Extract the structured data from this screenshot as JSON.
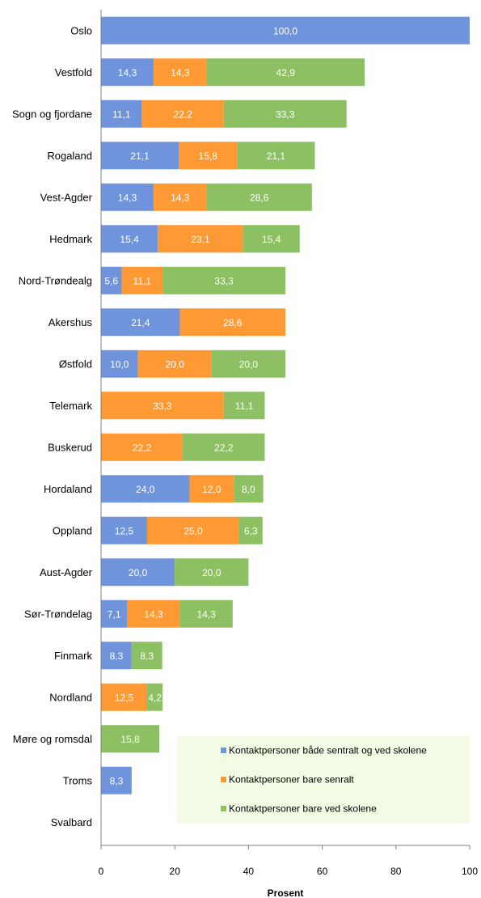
{
  "chart_data": {
    "type": "bar",
    "orientation": "horizontal",
    "stacked": true,
    "categories": [
      "Oslo",
      "Vestfold",
      "Sogn og fjordane",
      "Rogaland",
      "Vest-Agder",
      "Hedmark",
      "Nord-Trøndealg",
      "Akershus",
      "Østfold",
      "Telemark",
      "Buskerud",
      "Hordaland",
      "Oppland",
      "Aust-Agder",
      "Sør-Trøndelag",
      "Finmark",
      "Nordland",
      "Møre og romsdal",
      "Troms",
      "Svalbard"
    ],
    "series": [
      {
        "name": "Kontaktpersoner  både sentralt og ved skolene",
        "color": "#7094db",
        "values": [
          100.0,
          14.3,
          11.1,
          21.1,
          14.3,
          15.4,
          5.6,
          21.4,
          10.0,
          null,
          null,
          24.0,
          12.5,
          20.0,
          7.1,
          8.3,
          null,
          null,
          8.3,
          null
        ],
        "labels": [
          "100,0",
          "14,3",
          "11,1",
          "21,1",
          "14,3",
          "15,4",
          "5,6",
          "21,4",
          "10,0",
          "",
          "",
          "24,0",
          "12,5",
          "20,0",
          "7,1",
          "8,3",
          "",
          "",
          "8,3",
          ""
        ]
      },
      {
        "name": "Kontaktpersoner  bare senralt",
        "color": "#ff9933",
        "values": [
          null,
          14.3,
          22.2,
          15.8,
          14.3,
          23.1,
          11.1,
          28.6,
          20.0,
          33.3,
          22.2,
          12.0,
          25.0,
          null,
          14.3,
          null,
          12.5,
          null,
          null,
          null
        ],
        "labels": [
          "",
          "14,3",
          "22,2",
          "15,8",
          "14,3",
          "23,1",
          "11,1",
          "28,6",
          "20,0",
          "33,3",
          "22,2",
          "12,0",
          "25,0",
          "",
          "14,3",
          "",
          "12,5",
          "",
          "",
          ""
        ]
      },
      {
        "name": "Kontaktpersoner  bare ved skolene",
        "color": "#8cc063",
        "values": [
          null,
          42.9,
          33.3,
          21.1,
          28.6,
          15.4,
          33.3,
          null,
          20.0,
          11.1,
          22.2,
          8.0,
          6.3,
          20.0,
          14.3,
          8.3,
          4.2,
          15.8,
          null,
          null
        ],
        "labels": [
          "",
          "42,9",
          "33,3",
          "21,1",
          "28,6",
          "15,4",
          "33,3",
          "",
          "20,0",
          "11,1",
          "22,2",
          "8,0",
          "6,3",
          "20,0",
          "14,3",
          "8,3",
          "4,2",
          "15,8",
          "",
          ""
        ]
      }
    ],
    "xlabel": "Prosent",
    "xlim": [
      0,
      100
    ],
    "xticks": [
      0,
      20,
      40,
      60,
      80,
      100
    ],
    "grid": false,
    "legend_position": "bottom-right",
    "legend_background": "#f2fce4"
  }
}
